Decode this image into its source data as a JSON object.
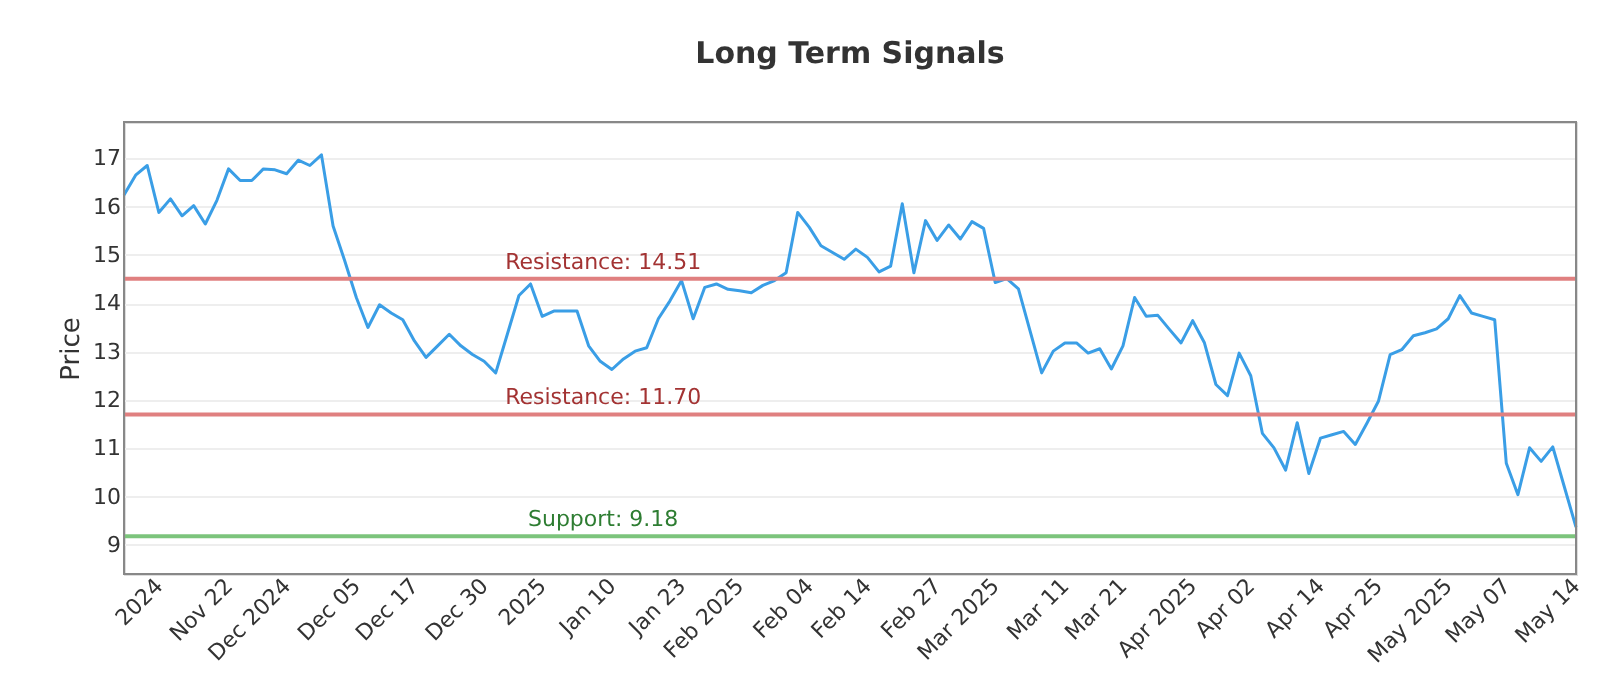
{
  "chart_data": {
    "type": "line",
    "title": "Long Term Signals",
    "ylabel": "Price",
    "categories": [
      null,
      null,
      null,
      "2024",
      null,
      null,
      null,
      null,
      null,
      "Nov 22",
      null,
      null,
      null,
      null,
      "Dec 2024",
      null,
      null,
      null,
      null,
      null,
      "Dec 05",
      null,
      null,
      null,
      null,
      "Dec 17",
      null,
      null,
      null,
      null,
      null,
      "Dec 30",
      null,
      null,
      null,
      null,
      "2025",
      null,
      null,
      null,
      null,
      null,
      "Jan 10",
      null,
      null,
      null,
      null,
      null,
      "Jan 23",
      null,
      null,
      null,
      null,
      "Feb 2025",
      null,
      null,
      null,
      null,
      null,
      "Feb 04",
      null,
      null,
      null,
      null,
      "Feb 14",
      null,
      null,
      null,
      null,
      null,
      "Feb 27",
      null,
      null,
      null,
      null,
      "Mar 2025",
      null,
      null,
      null,
      null,
      null,
      "Mar 11",
      null,
      null,
      null,
      null,
      "Mar 21",
      null,
      null,
      null,
      null,
      null,
      "Apr 2025",
      null,
      null,
      null,
      null,
      "Apr 02",
      null,
      null,
      null,
      null,
      null,
      "Apr 14",
      null,
      null,
      null,
      null,
      "Apr 25",
      null,
      null,
      null,
      null,
      null,
      "May 2025",
      null,
      null,
      null,
      null,
      "May 07",
      null,
      null,
      null,
      null,
      null,
      "May 14"
    ],
    "series": [
      {
        "color": "#3a9ee6",
        "values": [
          16.24,
          16.65,
          16.85,
          15.88,
          16.16,
          15.81,
          16.02,
          15.64,
          16.13,
          16.78,
          16.54,
          16.54,
          16.78,
          16.76,
          16.68,
          16.96,
          16.85,
          17.07,
          15.6,
          14.88,
          14.12,
          13.5,
          13.97,
          13.8,
          13.66,
          13.22,
          12.88,
          13.12,
          13.36,
          13.12,
          12.94,
          12.8,
          12.56,
          13.36,
          14.16,
          14.4,
          13.73,
          13.84,
          13.84,
          13.84,
          13.12,
          12.8,
          12.63,
          12.85,
          13.01,
          13.08,
          13.68,
          14.05,
          14.47,
          13.68,
          14.33,
          14.4,
          14.29,
          14.26,
          14.22,
          14.37,
          14.47,
          14.63,
          15.88,
          15.57,
          15.19,
          15.05,
          14.91,
          15.12,
          14.95,
          14.65,
          14.77,
          16.06,
          14.63,
          15.71,
          15.3,
          15.62,
          15.33,
          15.69,
          15.55,
          14.43,
          14.51,
          14.3,
          13.43,
          12.56,
          13.01,
          13.18,
          13.18,
          12.97,
          13.06,
          12.64,
          13.12,
          14.12,
          13.73,
          13.75,
          13.46,
          13.18,
          13.64,
          13.19,
          12.32,
          12.09,
          12.97,
          12.5,
          11.31,
          11.01,
          10.55,
          11.53,
          10.48,
          11.21,
          11.28,
          11.35,
          11.08,
          11.52,
          11.98,
          12.94,
          13.04,
          13.33,
          13.39,
          13.47,
          13.68,
          14.16,
          13.8,
          13.73,
          13.66,
          10.69,
          10.04,
          11.01,
          10.73,
          11.03,
          10.2,
          9.37
        ]
      }
    ],
    "ylim": [
      8.4,
      17.75
    ],
    "yticks": [
      9,
      10,
      11,
      12,
      13,
      14,
      15,
      16,
      17
    ],
    "grid": "y",
    "marker": "none",
    "line_style": "solid",
    "ref_lines": [
      {
        "axis": "y",
        "value": 14.51,
        "label": "Resistance: 14.51",
        "color": "#e08080"
      },
      {
        "axis": "y",
        "value": 11.7,
        "label": "Resistance: 11.70",
        "color": "#e08080"
      },
      {
        "axis": "y",
        "value": 9.18,
        "label": "Support: 9.18",
        "color": "#7cc47c"
      }
    ]
  }
}
